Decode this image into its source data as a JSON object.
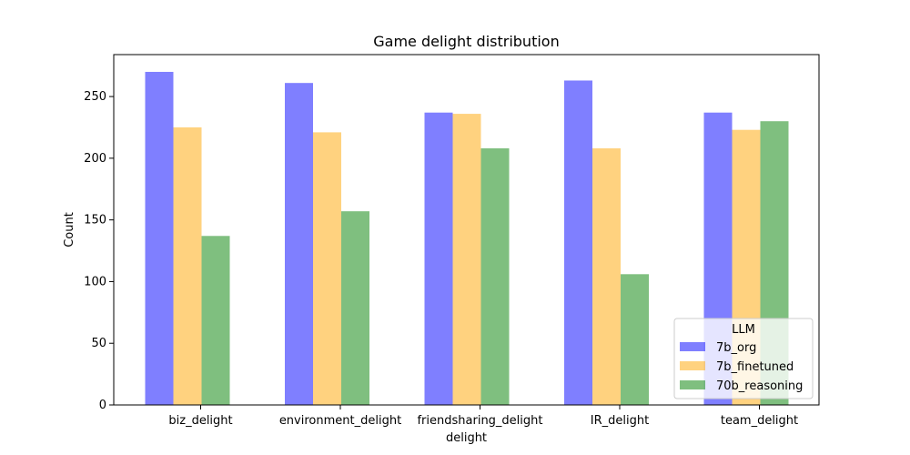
{
  "chart_data": {
    "type": "bar",
    "title": "Game delight distribution",
    "xlabel": "delight",
    "ylabel": "Count",
    "categories": [
      "biz_delight",
      "environment_delight",
      "friendsharing_delight",
      "IR_delight",
      "team_delight"
    ],
    "series": [
      {
        "name": "7b_org",
        "color": "#0000ff",
        "values": [
          270,
          261,
          237,
          263,
          237
        ]
      },
      {
        "name": "7b_finetuned",
        "color": "#ffa500",
        "values": [
          225,
          221,
          236,
          208,
          223
        ]
      },
      {
        "name": "70b_reasoning",
        "color": "#008000",
        "values": [
          137,
          157,
          208,
          106,
          230
        ]
      }
    ],
    "bar_alpha": 0.5,
    "ylim": [
      0,
      284
    ],
    "yticks": [
      0,
      50,
      100,
      150,
      200,
      250
    ],
    "grid": false,
    "legend": {
      "title": "LLM",
      "placement": "lower right"
    }
  }
}
